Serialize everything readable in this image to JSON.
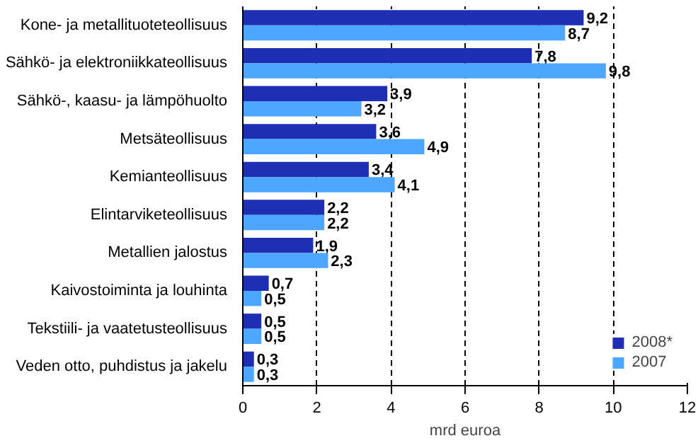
{
  "chart_data": {
    "type": "bar",
    "orientation": "horizontal",
    "xlabel": "mrd euroa",
    "categories": [
      "Kone- ja metallituoteteollisuus",
      "Sähkö- ja elektroniikkateollisuus",
      "Sähkö-, kaasu- ja lämpöhuolto",
      "Metsäteollisuus",
      "Kemianteollisuus",
      "Elintarviketeollisuus",
      "Metallien jalostus",
      "Kaivostoiminta ja louhinta",
      "Tekstiili- ja vaatetusteollisuus",
      "Veden otto, puhdistus ja jakelu"
    ],
    "series": [
      {
        "name": "2008*",
        "color": "#1f2fb4",
        "values": [
          9.2,
          7.8,
          3.9,
          3.6,
          3.4,
          2.2,
          1.9,
          0.7,
          0.5,
          0.3
        ],
        "value_labels": [
          "9,2",
          "7,8",
          "3,9",
          "3,6",
          "3,4",
          "2,2",
          "1,9",
          "0,7",
          "0,5",
          "0,3"
        ]
      },
      {
        "name": "2007",
        "color": "#4da6ff",
        "values": [
          8.7,
          9.8,
          3.2,
          4.9,
          4.1,
          2.2,
          2.3,
          0.5,
          0.5,
          0.3
        ],
        "value_labels": [
          "8,7",
          "9,8",
          "3,2",
          "4,9",
          "4,1",
          "2,2",
          "2,3",
          "0,5",
          "0,5",
          "0,3"
        ]
      }
    ],
    "xlim": [
      0,
      12
    ],
    "xticks": [
      0,
      2,
      4,
      6,
      8,
      10,
      12
    ],
    "grid": "x",
    "legend": "bottom right"
  }
}
